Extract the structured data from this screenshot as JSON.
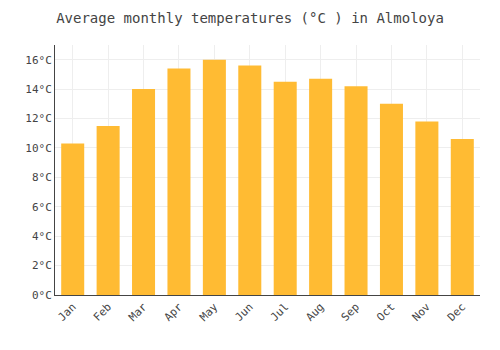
{
  "chart_data": {
    "type": "bar",
    "title": "Average monthly temperatures (°C ) in Almoloya",
    "categories": [
      "Jan",
      "Feb",
      "Mar",
      "Apr",
      "May",
      "Jun",
      "Jul",
      "Aug",
      "Sep",
      "Oct",
      "Nov",
      "Dec"
    ],
    "values": [
      10.3,
      11.5,
      14.0,
      15.4,
      16.0,
      15.6,
      14.5,
      14.7,
      14.2,
      13.0,
      11.8,
      10.6
    ],
    "color": "#FFBB33",
    "ylim": [
      0,
      17
    ],
    "yticks": [
      {
        "value": 0,
        "label": "0°C"
      },
      {
        "value": 2,
        "label": "2°C"
      },
      {
        "value": 4,
        "label": "4°C"
      },
      {
        "value": 6,
        "label": "6°C"
      },
      {
        "value": 8,
        "label": "8°C"
      },
      {
        "value": 10,
        "label": "10°C"
      },
      {
        "value": 12,
        "label": "12°C"
      },
      {
        "value": 14,
        "label": "14°C"
      },
      {
        "value": 16,
        "label": "16°C"
      }
    ],
    "grid": true
  }
}
